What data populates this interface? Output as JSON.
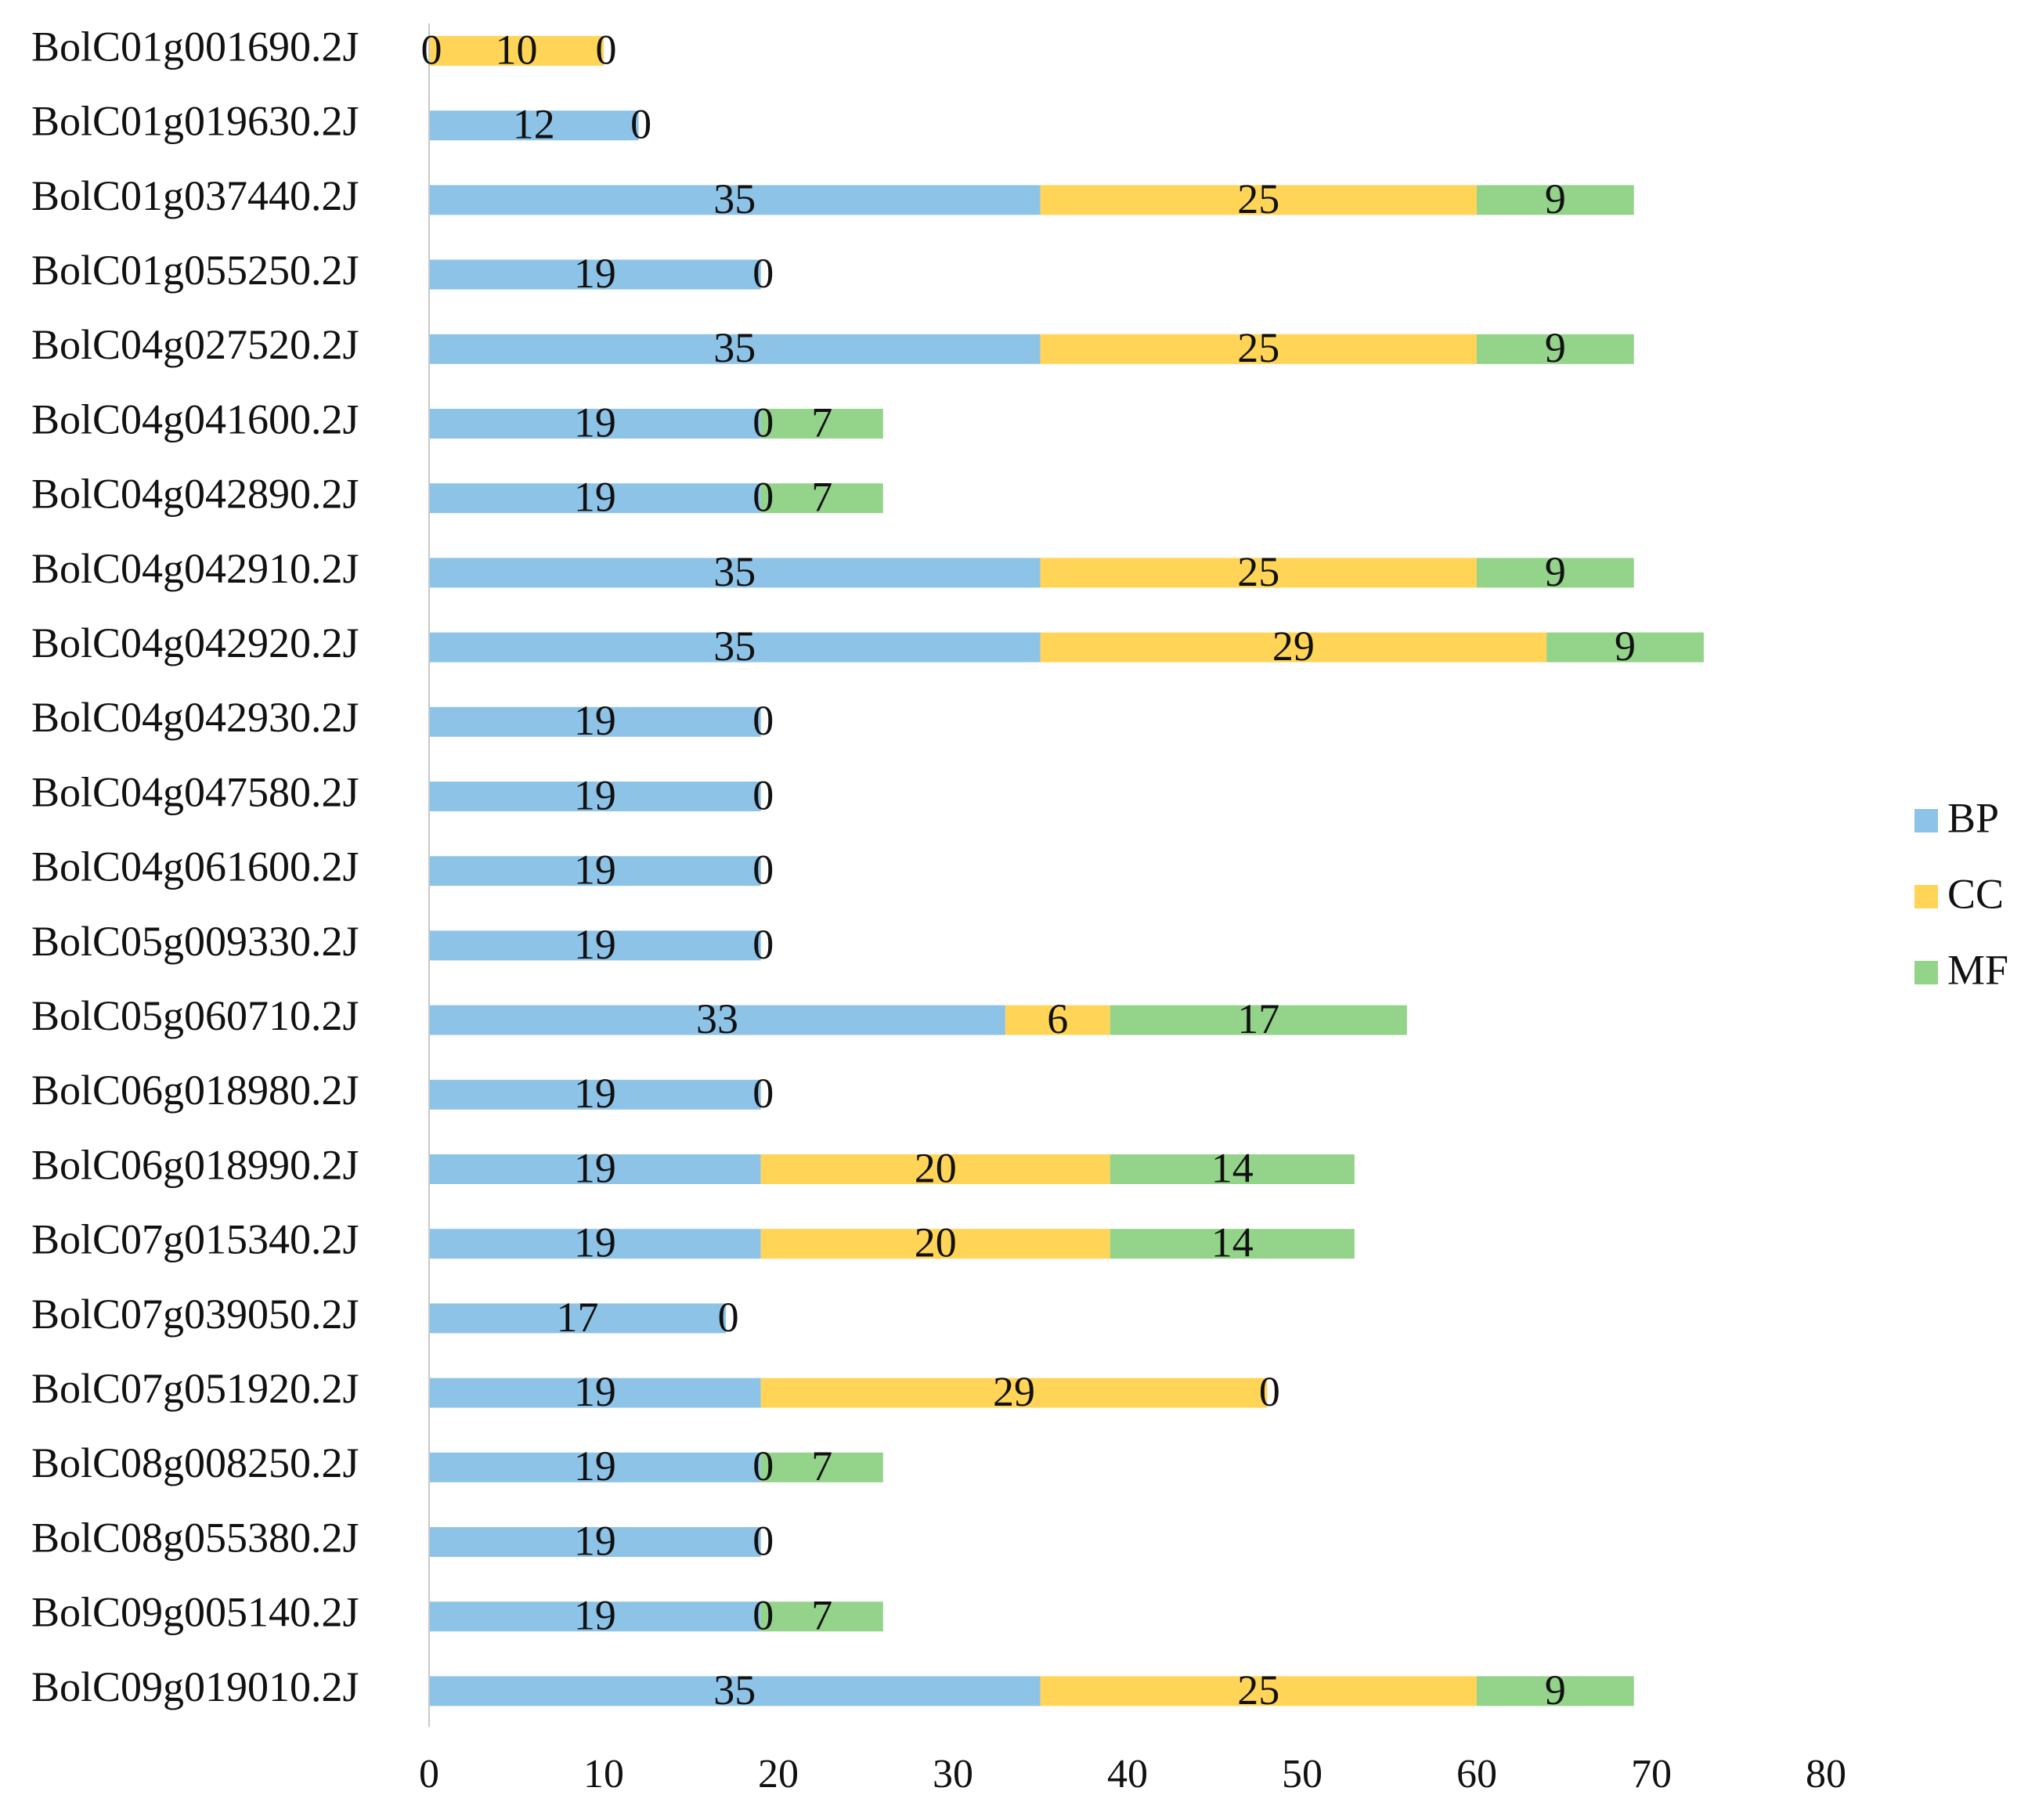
{
  "chart_data": {
    "type": "bar",
    "orientation": "horizontal",
    "stacked": true,
    "title": "",
    "xlabel": "",
    "ylabel": "",
    "xlim": [
      0,
      80
    ],
    "xticks": [
      0,
      10,
      20,
      30,
      40,
      50,
      60,
      70,
      80
    ],
    "grid": false,
    "legend_position": "right",
    "categories": [
      "BolC01g001690.2J",
      "BolC01g019630.2J",
      "BolC01g037440.2J",
      "BolC01g055250.2J",
      "BolC04g027520.2J",
      "BolC04g041600.2J",
      "BolC04g042890.2J",
      "BolC04g042910.2J",
      "BolC04g042920.2J",
      "BolC04g042930.2J",
      "BolC04g047580.2J",
      "BolC04g061600.2J",
      "BolC05g009330.2J",
      "BolC05g060710.2J",
      "BolC06g018980.2J",
      "BolC06g018990.2J",
      "BolC07g015340.2J",
      "BolC07g039050.2J",
      "BolC07g051920.2J",
      "BolC08g008250.2J",
      "BolC08g055380.2J",
      "BolC09g005140.2J",
      "BolC09g019010.2J"
    ],
    "series": [
      {
        "name": "BP",
        "color": "#8EC3E8",
        "values": [
          0,
          12,
          35,
          19,
          35,
          19,
          19,
          35,
          35,
          19,
          19,
          19,
          19,
          33,
          19,
          19,
          19,
          17,
          19,
          19,
          19,
          19,
          35
        ],
        "labels": [
          "0",
          "12",
          "35",
          "19",
          "35",
          "19",
          "19",
          "35",
          "35",
          "19",
          "19",
          "19",
          "19",
          "33",
          "19",
          "19",
          "19",
          "17",
          "19",
          "19",
          "19",
          "19",
          "35"
        ]
      },
      {
        "name": "CC",
        "color": "#FFD457",
        "values": [
          10,
          0,
          25,
          0,
          25,
          0,
          0,
          25,
          29,
          0,
          0,
          0,
          0,
          6,
          0,
          20,
          20,
          0,
          29,
          0,
          0,
          0,
          25
        ],
        "labels": [
          "10",
          "0",
          "25",
          "0",
          "25",
          "0",
          "0",
          "25",
          "29",
          "0",
          "0",
          "0",
          "0",
          "6",
          "0",
          "20",
          "20",
          "0",
          "29",
          "0",
          "0",
          "0",
          "25"
        ]
      },
      {
        "name": "MF",
        "color": "#93D38A",
        "values": [
          0,
          null,
          9,
          null,
          9,
          7,
          7,
          9,
          9,
          null,
          null,
          null,
          null,
          17,
          null,
          14,
          14,
          null,
          0,
          7,
          null,
          7,
          9
        ],
        "labels": [
          "0",
          "",
          "9",
          "",
          "9",
          "7",
          "7",
          "9",
          "9",
          "",
          "",
          "",
          "",
          "17",
          "",
          "14",
          "14",
          "",
          "0",
          "7",
          "",
          "7",
          "9"
        ]
      }
    ]
  }
}
